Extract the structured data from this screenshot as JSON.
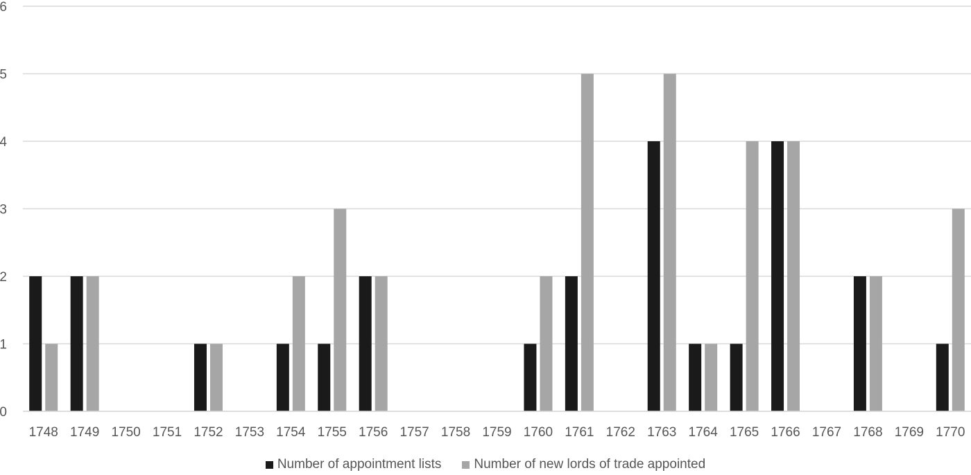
{
  "chart_data": {
    "type": "bar",
    "title": "",
    "xlabel": "",
    "ylabel": "",
    "ylim": [
      0,
      6
    ],
    "yticks": [
      0,
      1,
      2,
      3,
      4,
      5,
      6
    ],
    "grid": true,
    "legend_position": "bottom",
    "categories": [
      "1748",
      "1749",
      "1750",
      "1751",
      "1752",
      "1753",
      "1754",
      "1755",
      "1756",
      "1757",
      "1758",
      "1759",
      "1760",
      "1761",
      "1762",
      "1763",
      "1764",
      "1765",
      "1766",
      "1767",
      "1768",
      "1769",
      "1770"
    ],
    "series": [
      {
        "name": "Number of appointment lists",
        "color": "#1a1a1a",
        "values": [
          2,
          2,
          0,
          0,
          1,
          0,
          1,
          1,
          2,
          0,
          0,
          0,
          1,
          2,
          0,
          4,
          1,
          1,
          4,
          0,
          2,
          0,
          1
        ]
      },
      {
        "name": "Number of new lords of trade appointed",
        "color": "#a6a6a6",
        "values": [
          1,
          2,
          0,
          0,
          1,
          0,
          2,
          3,
          2,
          0,
          0,
          0,
          2,
          5,
          0,
          5,
          1,
          4,
          4,
          0,
          2,
          0,
          3
        ]
      }
    ]
  }
}
